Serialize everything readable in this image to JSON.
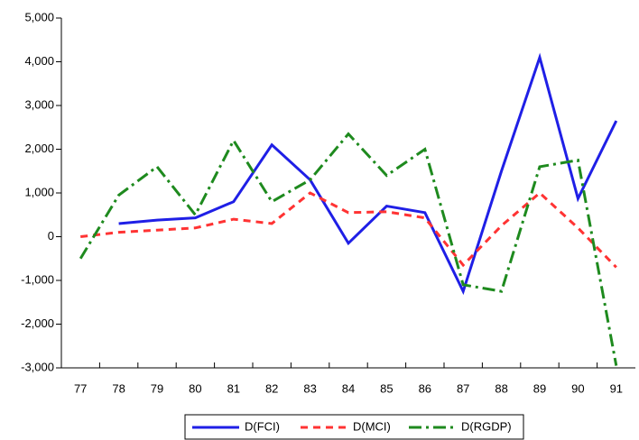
{
  "chart_data": {
    "type": "line",
    "categories": [
      "77",
      "78",
      "79",
      "80",
      "81",
      "82",
      "83",
      "84",
      "85",
      "86",
      "87",
      "88",
      "89",
      "90",
      "91"
    ],
    "series": [
      {
        "name": "D(FCI)",
        "color": "#1f1fe6",
        "dash": "solid",
        "values": [
          null,
          300,
          380,
          430,
          800,
          2100,
          1300,
          -150,
          700,
          550,
          -1250,
          1500,
          4100,
          870,
          2650
        ]
      },
      {
        "name": "D(MCI)",
        "color": "#ff3333",
        "dash": "dash",
        "values": [
          0,
          100,
          150,
          200,
          400,
          300,
          1000,
          550,
          570,
          430,
          -650,
          250,
          1000,
          200,
          -700
        ]
      },
      {
        "name": "D(RGDP)",
        "color": "#1e8a1e",
        "dash": "dashdot",
        "values": [
          -500,
          950,
          1600,
          500,
          2200,
          800,
          1300,
          2350,
          1400,
          2000,
          -1100,
          -1250,
          1600,
          1750,
          -2950
        ]
      }
    ],
    "ylim": [
      -3000,
      5000
    ],
    "yticks": [
      {
        "value": -3000,
        "label": "-3,000"
      },
      {
        "value": -2000,
        "label": "-2,000"
      },
      {
        "value": -1000,
        "label": "-1,000"
      },
      0,
      {
        "value": 1000,
        "label": "1,000"
      },
      {
        "value": 2000,
        "label": "2,000"
      },
      {
        "value": 3000,
        "label": "3,000"
      },
      {
        "value": 4000,
        "label": "4,000"
      },
      {
        "value": 5000,
        "label": "5,000"
      }
    ],
    "grid": false,
    "legend": "bottom"
  }
}
